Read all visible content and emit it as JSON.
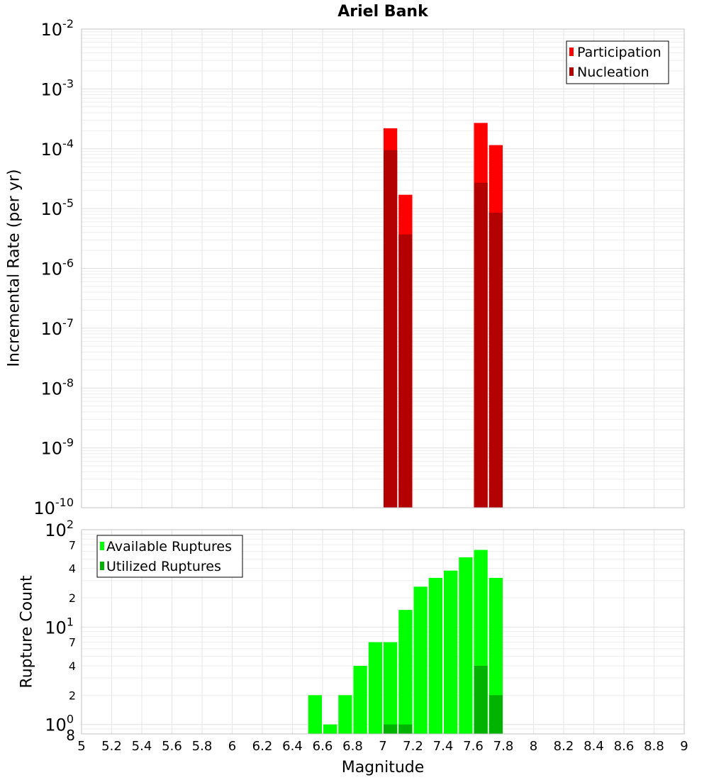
{
  "title": "Ariel Bank",
  "chart_data": [
    {
      "type": "bar",
      "ylabel": "Incremental Rate (per yr)",
      "yscale": "log",
      "ylim": [
        1e-10,
        0.01
      ],
      "xlim": [
        5,
        9
      ],
      "bin_width": 0.1,
      "grid": true,
      "legend_position": "top-right",
      "y_tick_labels": [
        {
          "base": "10",
          "exp": "-10"
        },
        {
          "base": "10",
          "exp": "-9"
        },
        {
          "base": "10",
          "exp": "-8"
        },
        {
          "base": "10",
          "exp": "-7"
        },
        {
          "base": "10",
          "exp": "-6"
        },
        {
          "base": "10",
          "exp": "-5"
        },
        {
          "base": "10",
          "exp": "-4"
        },
        {
          "base": "10",
          "exp": "-3"
        },
        {
          "base": "10",
          "exp": "-2"
        }
      ],
      "series": [
        {
          "name": "Participation",
          "color": "#ff0000",
          "x": [
            7.05,
            7.15,
            7.65,
            7.75
          ],
          "values": [
            0.00022,
            1.7e-05,
            0.00027,
            0.000115
          ]
        },
        {
          "name": "Nucleation",
          "color": "#b30000",
          "x": [
            7.05,
            7.15,
            7.65,
            7.75
          ],
          "values": [
            9.5e-05,
            3.7e-06,
            2.7e-05,
            8.5e-06
          ]
        }
      ]
    },
    {
      "type": "bar",
      "ylabel": "Rupture Count",
      "xlabel": "Magnitude",
      "yscale": "log",
      "ylim": [
        0.8,
        100
      ],
      "xlim": [
        5,
        9
      ],
      "bin_width": 0.1,
      "grid": true,
      "legend_position": "top-left",
      "x_ticks": [
        "5",
        "5.2",
        "5.4",
        "5.6",
        "5.8",
        "6",
        "6.2",
        "6.4",
        "6.6",
        "6.8",
        "7",
        "7.2",
        "7.4",
        "7.6",
        "7.8",
        "8",
        "8.2",
        "8.4",
        "8.6",
        "8.8",
        "9"
      ],
      "y_major_ticks": [
        {
          "value": 1,
          "base": "10",
          "exp": "0"
        },
        {
          "value": 10,
          "base": "10",
          "exp": "1"
        },
        {
          "value": 100,
          "base": "10",
          "exp": "2"
        }
      ],
      "y_minor_ticks": [
        {
          "value": 0.8,
          "label": "8"
        },
        {
          "value": 2,
          "label": "2"
        },
        {
          "value": 4,
          "label": "4"
        },
        {
          "value": 7,
          "label": "7"
        },
        {
          "value": 20,
          "label": "2"
        },
        {
          "value": 40,
          "label": "4"
        },
        {
          "value": 70,
          "label": "7"
        }
      ],
      "series": [
        {
          "name": "Available Ruptures",
          "color": "#00ff00",
          "x": [
            6.55,
            6.65,
            6.75,
            6.85,
            6.95,
            7.05,
            7.15,
            7.25,
            7.35,
            7.45,
            7.55,
            7.65,
            7.75
          ],
          "values": [
            2,
            1,
            2,
            4,
            7,
            7,
            15,
            26,
            32,
            38,
            52,
            62,
            32
          ]
        },
        {
          "name": "Utilized Ruptures",
          "color": "#00b300",
          "x": [
            7.05,
            7.15,
            7.65,
            7.75
          ],
          "values": [
            1,
            1,
            4,
            2
          ]
        }
      ]
    }
  ]
}
